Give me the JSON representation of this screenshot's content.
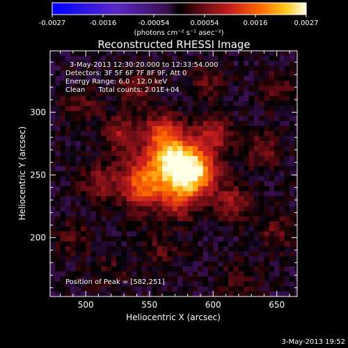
{
  "chart_data": {
    "type": "heatmap",
    "title": "Reconstructed RHESSI Image",
    "xlabel": "Heliocentric X (arcsec)",
    "ylabel": "Heliocentric Y (arcsec)",
    "xlim": [
      472,
      666
    ],
    "ylim": [
      153,
      349
    ],
    "x_ticks": [
      500,
      550,
      600,
      650
    ],
    "y_ticks": [
      200,
      250,
      300
    ],
    "colorbar": {
      "ticks": [
        "-0.0027",
        "-0.0016",
        "-0.00054",
        "0.00054",
        "0.0016",
        "0.0027"
      ],
      "range": [
        -0.0027,
        0.0027
      ],
      "units_label": "(photons cm⁻² s⁻¹ asec⁻²)"
    },
    "annotations": [
      "3-May-2013 12:30:20.000 to 12:33:54.000",
      "Detectors: 3F 5F 6F 7F 8F 9F, Att 0",
      "Energy Range: 6.0 - 12.0 keV",
      "Clean      Total counts: 2.01E+04"
    ],
    "peak_text": "Position of Peak = [582,251]",
    "peak": {
      "x": 582,
      "y": 251,
      "value": 0.0027
    },
    "sources": [
      {
        "x": 582,
        "y": 251,
        "value": 0.0027
      },
      {
        "x": 567,
        "y": 264,
        "value": 0.0019
      },
      {
        "x": 545,
        "y": 243,
        "value": 0.0017
      },
      {
        "x": 560,
        "y": 285,
        "value": 0.0011
      },
      {
        "x": 600,
        "y": 282,
        "value": 0.001
      },
      {
        "x": 528,
        "y": 282,
        "value": 0.0009
      },
      {
        "x": 615,
        "y": 228,
        "value": 0.0008
      },
      {
        "x": 572,
        "y": 228,
        "value": 0.0008
      },
      {
        "x": 510,
        "y": 245,
        "value": 0.0007
      },
      {
        "x": 640,
        "y": 270,
        "value": 0.0006
      },
      {
        "x": 495,
        "y": 305,
        "value": 0.0005
      },
      {
        "x": 650,
        "y": 205,
        "value": 0.0005
      },
      {
        "x": 540,
        "y": 320,
        "value": 0.0006
      },
      {
        "x": 595,
        "y": 325,
        "value": 0.0005
      },
      {
        "x": 490,
        "y": 200,
        "value": 0.0004
      },
      {
        "x": 560,
        "y": 190,
        "value": 0.0004
      },
      {
        "x": 620,
        "y": 165,
        "value": 0.0004
      },
      {
        "x": 650,
        "y": 318,
        "value": 0.0005
      },
      {
        "x": 520,
        "y": 175,
        "value": 0.0003
      }
    ],
    "grid": false,
    "legend": "none"
  },
  "footer": {
    "date": "3-May-2013 19:52"
  }
}
